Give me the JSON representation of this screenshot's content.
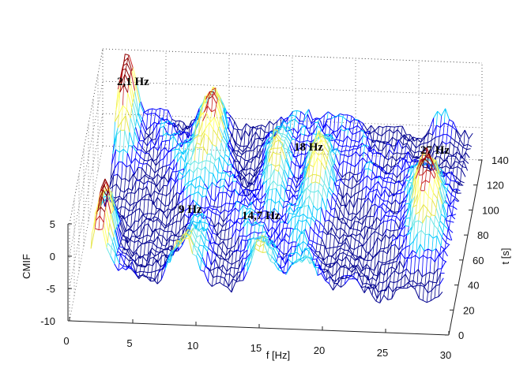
{
  "chart_data": {
    "type": "surface",
    "xlabel": "f [Hz]",
    "ylabel": "t [s]",
    "zlabel": "CMIF",
    "xlim": [
      0,
      30
    ],
    "ylim": [
      0,
      140
    ],
    "zlim": [
      -10,
      5
    ],
    "x_ticks": [
      "0",
      "5",
      "10",
      "15",
      "20",
      "25",
      "30"
    ],
    "y_ticks": [
      "0",
      "20",
      "40",
      "60",
      "80",
      "100",
      "120",
      "140"
    ],
    "z_ticks": [
      "5",
      "0",
      "-5",
      "-10"
    ],
    "grid": "dotted",
    "colormap": [
      "#00008f",
      "#0000ff",
      "#00c8ff",
      "#6ae6e6",
      "#e6e64a",
      "#ffff66",
      "#c82020",
      "#8b0000"
    ],
    "annotations": [
      {
        "text": "2,1 Hz",
        "f": 2.1
      },
      {
        "text": "9 Hz",
        "f": 9
      },
      {
        "text": "14,7 Hz",
        "f": 14.7
      },
      {
        "text": "18 Hz",
        "f": 18
      },
      {
        "text": "27 Hz",
        "f": 27
      }
    ],
    "peaks": [
      {
        "f": 2.1,
        "height": 4.5
      },
      {
        "f": 9,
        "height": 3.0
      },
      {
        "f": 14.7,
        "height": 1.5
      },
      {
        "f": 18,
        "height": 3.0
      },
      {
        "f": 27,
        "height": 2.8
      }
    ]
  }
}
